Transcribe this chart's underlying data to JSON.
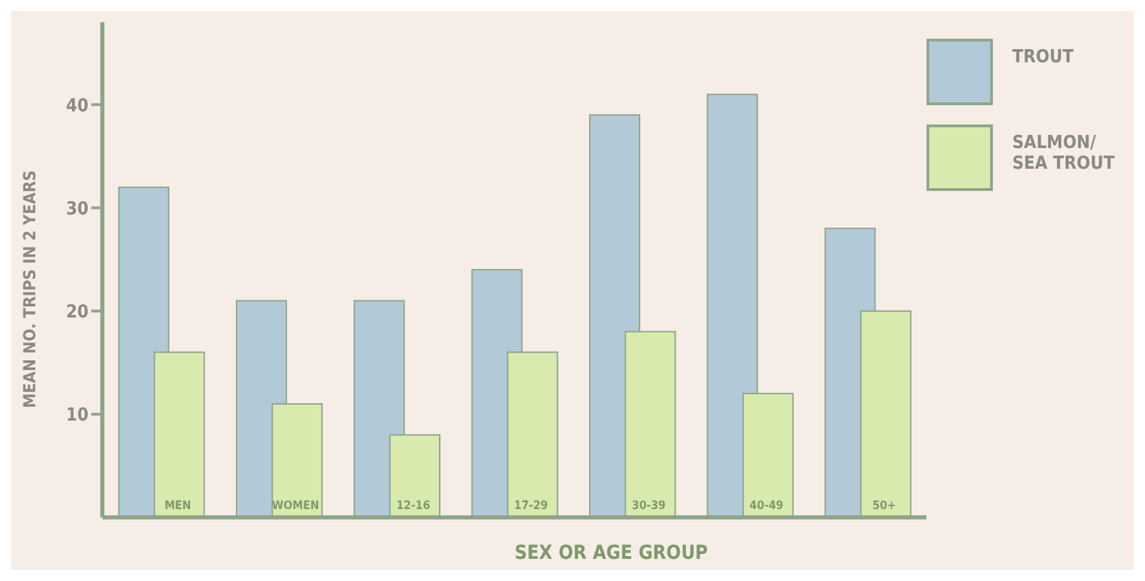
{
  "chart_data": {
    "type": "bar",
    "xlabel": "SEX OR AGE GROUP",
    "ylabel": "MEAN NO. TRIPS IN 2 YEARS",
    "categories": [
      "MEN",
      "WOMEN",
      "12-16",
      "17-29",
      "30-39",
      "40-49",
      "50+"
    ],
    "series": [
      {
        "name": "TROUT",
        "color": "#b2c9d8",
        "values": [
          32,
          21,
          21,
          24,
          39,
          41,
          28
        ]
      },
      {
        "name": "SALMON/ SEA TROUT",
        "color": "#d9eaae",
        "values": [
          16,
          11,
          8,
          16,
          18,
          12,
          20
        ]
      }
    ],
    "ylim": [
      0,
      48
    ],
    "yticks": [
      10,
      20,
      30,
      40
    ],
    "grid": false,
    "legend": "top right"
  }
}
